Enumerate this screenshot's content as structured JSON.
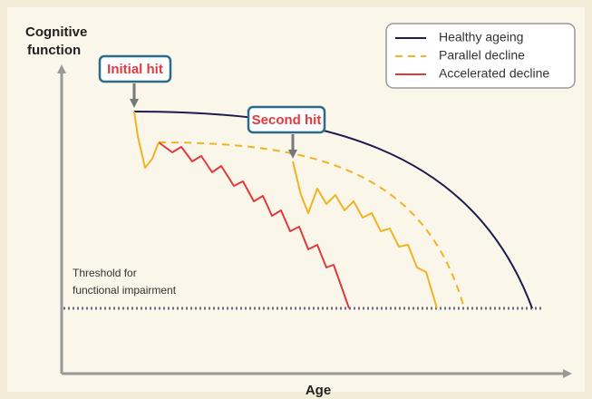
{
  "axes": {
    "y_label": [
      "Cognitive",
      "function"
    ],
    "x_label": "Age"
  },
  "callouts": [
    "Initial hit",
    "Second hit"
  ],
  "threshold_label": [
    "Threshold for",
    "functional impairment"
  ],
  "legend": [
    "Healthy ageing",
    "Parallel decline",
    "Accelerated decline"
  ]
}
